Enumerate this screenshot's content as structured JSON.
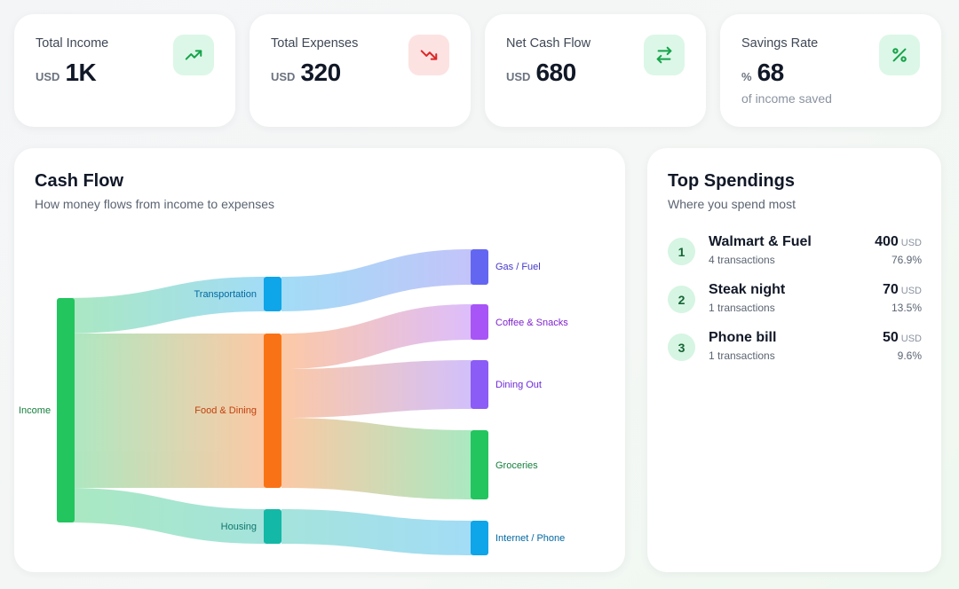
{
  "stats": [
    {
      "label": "Total Income",
      "unit": "USD",
      "value": "1K",
      "icon": "trending-up-icon"
    },
    {
      "label": "Total Expenses",
      "unit": "USD",
      "value": "320",
      "icon": "trending-down-icon"
    },
    {
      "label": "Net Cash Flow",
      "unit": "USD",
      "value": "680",
      "icon": "arrows-exchange-icon"
    },
    {
      "label": "Savings Rate",
      "unit": "%",
      "value": "68",
      "sub": "of income saved",
      "icon": "percent-icon"
    }
  ],
  "cashflow": {
    "title": "Cash Flow",
    "subtitle": "How money flows from income to expenses",
    "nodes": {
      "income": "Income",
      "transportation": "Transportation",
      "food": "Food & Dining",
      "housing": "Housing",
      "gas": "Gas / Fuel",
      "coffee": "Coffee & Snacks",
      "dining": "Dining Out",
      "groceries": "Groceries",
      "internet": "Internet / Phone"
    },
    "colors": {
      "income": "#22c55e",
      "transportation": "#0ea5e9",
      "food": "#f97316",
      "housing": "#14b8a6",
      "gas": "#6366f1",
      "coffee": "#a855f7",
      "dining": "#8b5cf6",
      "groceries": "#22c55e",
      "internet": "#0ea5e9"
    }
  },
  "top_spendings": {
    "title": "Top Spendings",
    "subtitle": "Where you spend most",
    "items": [
      {
        "rank": "1",
        "name": "Walmart & Fuel",
        "transactions": "4 transactions",
        "amount": "400",
        "unit": "USD",
        "percent": "76.9%"
      },
      {
        "rank": "2",
        "name": "Steak night",
        "transactions": "1 transactions",
        "amount": "70",
        "unit": "USD",
        "percent": "13.5%"
      },
      {
        "rank": "3",
        "name": "Phone bill",
        "transactions": "1 transactions",
        "amount": "50",
        "unit": "USD",
        "percent": "9.6%"
      }
    ]
  }
}
